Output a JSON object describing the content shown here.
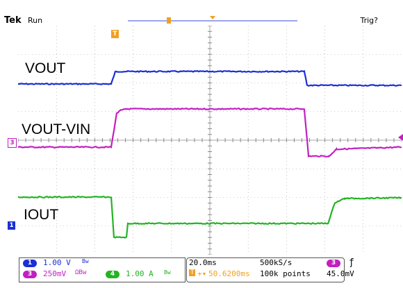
{
  "header": {
    "brand": "Tek",
    "state": "Run",
    "trigger_status": "Trig?"
  },
  "labels": {
    "vout": "VOUT",
    "vout_vin": "VOUT-VIN",
    "iout": "IOUT"
  },
  "markers": {
    "ch3": "3",
    "ch1": "1",
    "trigger": "T"
  },
  "channels": [
    {
      "num": "1",
      "scale": "1.00 V",
      "suffix": "Bw",
      "color": "#1a2fd6"
    },
    {
      "num": "3",
      "scale": "250mV",
      "suffix": "ΩBw",
      "color": "#c21fc2"
    },
    {
      "num": "4",
      "scale": "1.00 A",
      "suffix": "Bw",
      "color": "#22b422"
    }
  ],
  "timebase": {
    "time_div": "20.0ms",
    "sample_rate": "500kS/s",
    "trigger_pos": "50.6200ms",
    "record_length": "100k points",
    "trigger_channel": "3",
    "trigger_level": "45.0mV"
  },
  "colors": {
    "vout": "#1a2fd6",
    "vout_vin": "#c21fc2",
    "iout": "#22b422",
    "trigger": "#f0a020",
    "grid": "#9a9a9a"
  }
}
